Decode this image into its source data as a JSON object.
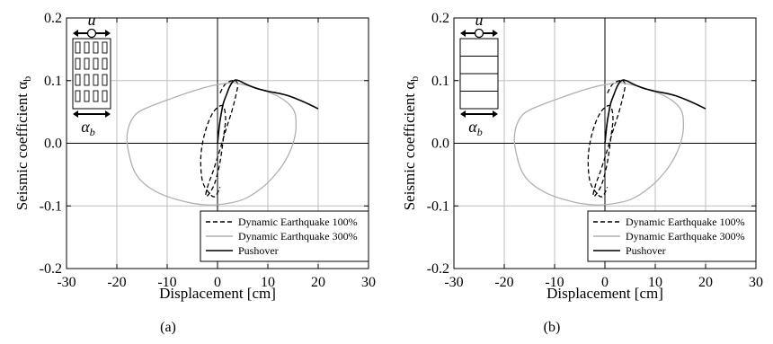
{
  "chart_data": [
    {
      "type": "line",
      "caption": "(a)",
      "xlabel": "Displacement [cm]",
      "ylabel_main": "Seismic coefficient α",
      "ylabel_sub": "b",
      "xlim": [
        -30,
        30
      ],
      "ylim": [
        -0.2,
        0.2
      ],
      "xticks": [
        -30,
        -20,
        -10,
        0,
        10,
        20,
        30
      ],
      "yticks": [
        -0.2,
        -0.1,
        0.0,
        0.1,
        0.2
      ],
      "ytick_labels": [
        "-0.2",
        "-0.1",
        "0.0",
        "0.1",
        "0.2"
      ],
      "grid": true,
      "legend_position": "bottom-right",
      "inset": {
        "type": "wall",
        "top_label": "u",
        "bottom_label_main": "α",
        "bottom_label_sub": "b"
      },
      "series": [
        {
          "name": "Dynamic Earthquake 100%",
          "style": "dashed",
          "color": "#000000",
          "x": [
            0.5,
            1.5,
            3.0,
            4.0,
            3.6,
            2.8,
            1.6,
            0.3,
            -0.9,
            -1.8,
            -2.3,
            -2.2,
            -1.8,
            -1.2,
            -0.4,
            0.5,
            1.2,
            1.6,
            1.0,
            -0.8,
            -2.4,
            -3.3,
            -3.0,
            -1.6,
            -0.5,
            0.5
          ],
          "y": [
            0.08,
            0.094,
            0.1,
            0.095,
            0.075,
            0.05,
            0.02,
            -0.015,
            -0.045,
            -0.065,
            -0.08,
            -0.085,
            -0.082,
            -0.075,
            -0.06,
            -0.03,
            0.01,
            0.04,
            0.06,
            0.05,
            0.02,
            -0.02,
            -0.06,
            -0.08,
            -0.085,
            -0.07
          ]
        },
        {
          "name": "Dynamic Earthquake 300%",
          "style": "solid",
          "color": "#b0b0b0",
          "x": [
            3,
            7,
            12,
            15,
            15.6,
            15.2,
            14.0,
            12.0,
            9.0,
            5.0,
            0.0,
            -4.0,
            -8.0,
            -11.5,
            -14.5,
            -16.5,
            -17.5,
            -18.0,
            -17.5,
            -16.0,
            -13.0,
            -9.0,
            -5.0,
            -1.0,
            3.0
          ],
          "y": [
            0.097,
            0.09,
            0.075,
            0.055,
            0.03,
            0.005,
            -0.02,
            -0.045,
            -0.07,
            -0.09,
            -0.098,
            -0.097,
            -0.09,
            -0.08,
            -0.065,
            -0.045,
            -0.02,
            0.005,
            0.03,
            0.048,
            0.06,
            0.072,
            0.083,
            0.092,
            0.097
          ]
        },
        {
          "name": "Pushover",
          "style": "solid",
          "color": "#000000",
          "x": [
            0,
            0.4,
            0.8,
            1.2,
            1.8,
            2.4,
            3.0,
            3.6,
            4.5,
            6,
            8,
            10,
            12,
            14,
            16,
            18,
            20
          ],
          "y": [
            0.0,
            0.03,
            0.05,
            0.065,
            0.078,
            0.09,
            0.098,
            0.101,
            0.099,
            0.093,
            0.087,
            0.083,
            0.08,
            0.076,
            0.07,
            0.063,
            0.055
          ]
        }
      ]
    },
    {
      "type": "line",
      "caption": "(b)",
      "xlabel": "Displacement [cm]",
      "ylabel_main": "Seismic coefficient α",
      "ylabel_sub": "b",
      "xlim": [
        -30,
        30
      ],
      "ylim": [
        -0.2,
        0.2
      ],
      "xticks": [
        -30,
        -20,
        -10,
        0,
        10,
        20,
        30
      ],
      "yticks": [
        -0.2,
        -0.1,
        0.0,
        0.1,
        0.2
      ],
      "ytick_labels": [
        "-0.2",
        "-0.1",
        "0.0",
        "0.1",
        "0.2"
      ],
      "grid": true,
      "legend_position": "bottom-right",
      "inset": {
        "type": "floors",
        "top_label": "u",
        "bottom_label_main": "α",
        "bottom_label_sub": "b"
      },
      "series": [
        {
          "name": "Dynamic Earthquake 100%",
          "style": "dashed",
          "color": "#000000",
          "x": [
            0.5,
            1.5,
            3.0,
            4.0,
            3.6,
            2.8,
            1.6,
            0.3,
            -0.9,
            -1.8,
            -2.3,
            -2.2,
            -1.8,
            -1.2,
            -0.4,
            0.5,
            1.2,
            1.6,
            1.0,
            -0.8,
            -2.4,
            -3.3,
            -3.0,
            -1.6,
            -0.5,
            0.5
          ],
          "y": [
            0.08,
            0.094,
            0.1,
            0.095,
            0.075,
            0.05,
            0.02,
            -0.015,
            -0.045,
            -0.065,
            -0.08,
            -0.085,
            -0.082,
            -0.075,
            -0.06,
            -0.03,
            0.01,
            0.04,
            0.06,
            0.05,
            0.02,
            -0.02,
            -0.06,
            -0.08,
            -0.085,
            -0.07
          ]
        },
        {
          "name": "Dynamic Earthquake 300%",
          "style": "solid",
          "color": "#b0b0b0",
          "x": [
            3,
            7,
            12,
            15,
            15.6,
            15.2,
            14.0,
            12.0,
            9.0,
            5.0,
            0.0,
            -4.0,
            -8.0,
            -11.5,
            -14.5,
            -16.5,
            -17.5,
            -18.0,
            -17.5,
            -16.0,
            -13.0,
            -9.0,
            -5.0,
            -1.0,
            3.0
          ],
          "y": [
            0.097,
            0.09,
            0.075,
            0.055,
            0.03,
            0.005,
            -0.02,
            -0.045,
            -0.07,
            -0.09,
            -0.098,
            -0.097,
            -0.09,
            -0.08,
            -0.065,
            -0.045,
            -0.02,
            0.005,
            0.03,
            0.048,
            0.06,
            0.072,
            0.083,
            0.092,
            0.097
          ]
        },
        {
          "name": "Pushover",
          "style": "solid",
          "color": "#000000",
          "x": [
            0,
            0.4,
            0.8,
            1.2,
            1.8,
            2.4,
            3.0,
            3.6,
            4.5,
            6,
            8,
            10,
            12,
            14,
            16,
            18,
            20
          ],
          "y": [
            0.0,
            0.03,
            0.05,
            0.065,
            0.078,
            0.09,
            0.098,
            0.101,
            0.099,
            0.093,
            0.087,
            0.083,
            0.08,
            0.076,
            0.07,
            0.063,
            0.055
          ]
        }
      ]
    }
  ]
}
